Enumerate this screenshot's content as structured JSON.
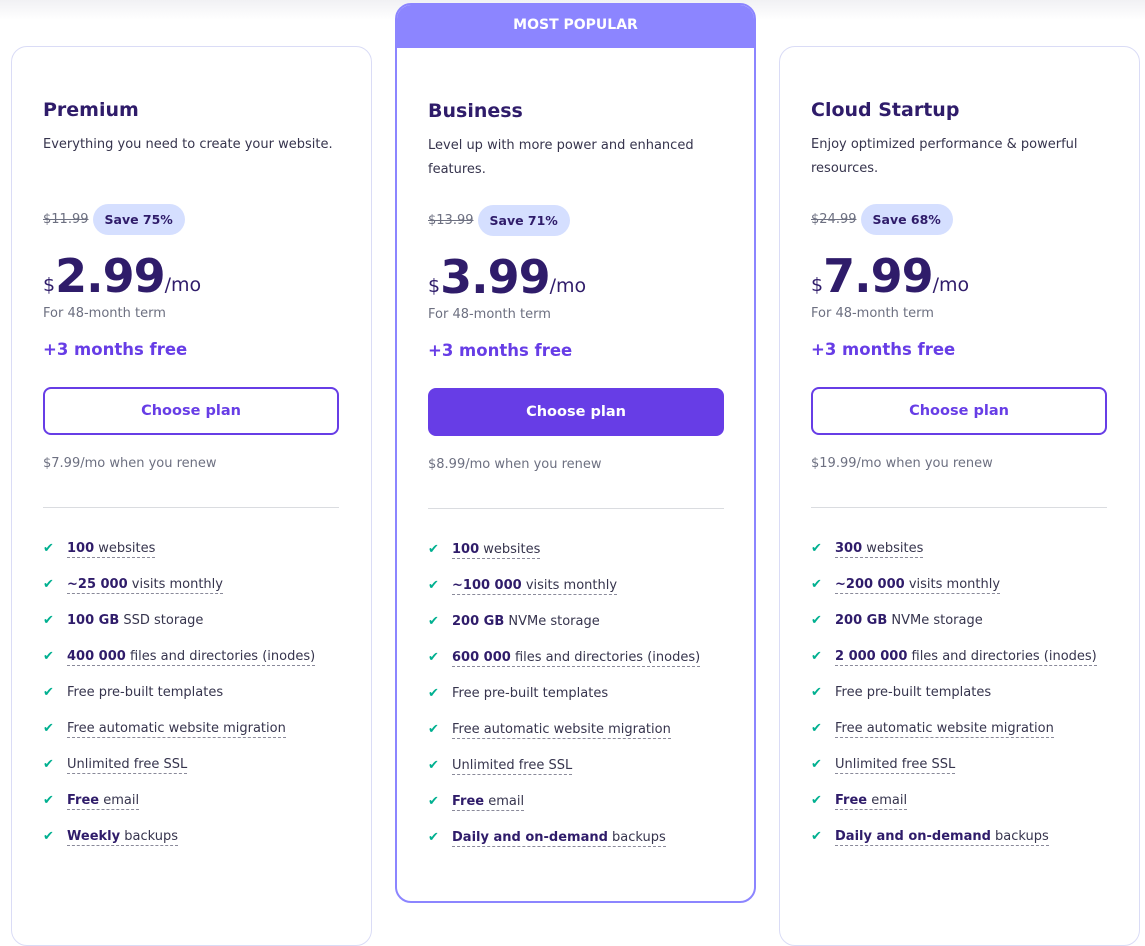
{
  "badge": "MOST POPULAR",
  "colors": {
    "accent": "#673de6",
    "ribbon": "#8c85ff",
    "check": "#00b090",
    "save_bg": "#d5dfff"
  },
  "plans": [
    {
      "title": "Premium",
      "desc": "Everything you need to create your website.",
      "old": "$11.99",
      "save": "Save 75%",
      "cur": "$",
      "amt": "2.99",
      "per": "/mo",
      "term": "For 48-month term",
      "free": "+3 months free",
      "button": "Choose plan",
      "renew": "$7.99/mo when you renew",
      "features": [
        {
          "b": "100",
          "t": " websites",
          "u": true
        },
        {
          "b": "~25 000",
          "t": " visits monthly",
          "u": true
        },
        {
          "b": "100 GB",
          "t": " SSD storage",
          "u": false
        },
        {
          "b": "400 000",
          "t": " files and directories (inodes)",
          "u": true
        },
        {
          "b": "",
          "t": "Free pre-built templates",
          "u": false
        },
        {
          "b": "",
          "t": "Free automatic website migration",
          "u": true
        },
        {
          "b": "",
          "t": "Unlimited free SSL",
          "u": true
        },
        {
          "b": "Free",
          "t": " email",
          "u": true
        },
        {
          "b": "Weekly",
          "t": " backups",
          "u": true
        }
      ]
    },
    {
      "title": "Business",
      "desc": "Level up with more power and enhanced features.",
      "old": "$13.99",
      "save": "Save 71%",
      "cur": "$",
      "amt": "3.99",
      "per": "/mo",
      "term": "For 48-month term",
      "free": "+3 months free",
      "button": "Choose plan",
      "renew": "$8.99/mo when you renew",
      "features": [
        {
          "b": "100",
          "t": " websites",
          "u": true
        },
        {
          "b": "~100 000",
          "t": " visits monthly",
          "u": true
        },
        {
          "b": "200 GB",
          "t": " NVMe storage",
          "u": false
        },
        {
          "b": "600 000",
          "t": " files and directories (inodes)",
          "u": true
        },
        {
          "b": "",
          "t": "Free pre-built templates",
          "u": false
        },
        {
          "b": "",
          "t": "Free automatic website migration",
          "u": true
        },
        {
          "b": "",
          "t": "Unlimited free SSL",
          "u": true
        },
        {
          "b": "Free",
          "t": " email",
          "u": true
        },
        {
          "b": "Daily and on-demand",
          "t": " backups",
          "u": true
        }
      ]
    },
    {
      "title": "Cloud Startup",
      "desc": "Enjoy optimized performance & powerful resources.",
      "old": "$24.99",
      "save": "Save 68%",
      "cur": "$",
      "amt": "7.99",
      "per": "/mo",
      "term": "For 48-month term",
      "free": "+3 months free",
      "button": "Choose plan",
      "renew": "$19.99/mo when you renew",
      "features": [
        {
          "b": "300",
          "t": " websites",
          "u": true
        },
        {
          "b": "~200 000",
          "t": " visits monthly",
          "u": true
        },
        {
          "b": "200 GB",
          "t": " NVMe storage",
          "u": false
        },
        {
          "b": "2 000 000",
          "t": " files and directories (inodes)",
          "u": true
        },
        {
          "b": "",
          "t": "Free pre-built templates",
          "u": false
        },
        {
          "b": "",
          "t": "Free automatic website migration",
          "u": true
        },
        {
          "b": "",
          "t": "Unlimited free SSL",
          "u": true
        },
        {
          "b": "Free",
          "t": " email",
          "u": true
        },
        {
          "b": "Daily and on-demand",
          "t": " backups",
          "u": true
        }
      ]
    }
  ]
}
